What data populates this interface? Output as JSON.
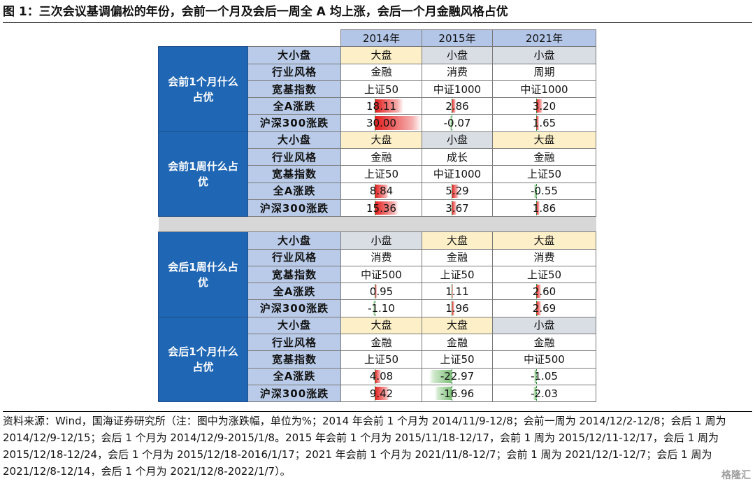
{
  "title": "图 1：三次会议基调偏松的年份，会前一个月及会后一周全 A 均上涨，会后一个月金融风格占优",
  "years": [
    "2014年",
    "2015年",
    "2021年"
  ],
  "groups": [
    {
      "label": "会前1个月什么占优",
      "rows": [
        {
          "label": "大小盘",
          "kind": "size",
          "cells": [
            {
              "text": "大盘",
              "style": "big"
            },
            {
              "text": "小盘",
              "style": "small"
            },
            {
              "text": "小盘",
              "style": "small"
            }
          ]
        },
        {
          "label": "行业风格",
          "kind": "text",
          "cells": [
            {
              "text": "金融"
            },
            {
              "text": "消费"
            },
            {
              "text": "周期"
            }
          ]
        },
        {
          "label": "宽基指数",
          "kind": "text",
          "cells": [
            {
              "text": "上证50"
            },
            {
              "text": "中证1000"
            },
            {
              "text": "中证1000"
            }
          ]
        },
        {
          "label": "全A涨跌",
          "kind": "num",
          "cells": [
            {
              "text": "18.11",
              "value": 18.11
            },
            {
              "text": "2.86",
              "value": 2.86
            },
            {
              "text": "3.20",
              "value": 3.2
            }
          ]
        },
        {
          "label": "沪深300涨跌",
          "kind": "num",
          "cells": [
            {
              "text": "30.00",
              "value": 30.0
            },
            {
              "text": "-0.07",
              "value": -0.07
            },
            {
              "text": "1.65",
              "value": 1.65
            }
          ]
        }
      ]
    },
    {
      "label": "会前1周什么占优",
      "rows": [
        {
          "label": "大小盘",
          "kind": "size",
          "cells": [
            {
              "text": "大盘",
              "style": "big"
            },
            {
              "text": "小盘",
              "style": "small"
            },
            {
              "text": "大盘",
              "style": "big"
            }
          ]
        },
        {
          "label": "行业风格",
          "kind": "text",
          "cells": [
            {
              "text": "金融"
            },
            {
              "text": "成长"
            },
            {
              "text": "金融"
            }
          ]
        },
        {
          "label": "宽基指数",
          "kind": "text",
          "cells": [
            {
              "text": "上证50"
            },
            {
              "text": "中证1000"
            },
            {
              "text": "上证50"
            }
          ]
        },
        {
          "label": "全A涨跌",
          "kind": "num",
          "cells": [
            {
              "text": "8.84",
              "value": 8.84
            },
            {
              "text": "5.29",
              "value": 5.29
            },
            {
              "text": "-0.55",
              "value": -0.55
            }
          ]
        },
        {
          "label": "沪深300涨跌",
          "kind": "num",
          "cells": [
            {
              "text": "15.36",
              "value": 15.36
            },
            {
              "text": "3.67",
              "value": 3.67
            },
            {
              "text": "1.86",
              "value": 1.86
            }
          ]
        }
      ]
    },
    {
      "label": "会后1周什么占优",
      "rows": [
        {
          "label": "大小盘",
          "kind": "size",
          "cells": [
            {
              "text": "小盘",
              "style": "small"
            },
            {
              "text": "大盘",
              "style": "big"
            },
            {
              "text": "大盘",
              "style": "big"
            }
          ]
        },
        {
          "label": "行业风格",
          "kind": "text",
          "cells": [
            {
              "text": "消费"
            },
            {
              "text": "金融"
            },
            {
              "text": "消费"
            }
          ]
        },
        {
          "label": "宽基指数",
          "kind": "text",
          "cells": [
            {
              "text": "中证500"
            },
            {
              "text": "上证50"
            },
            {
              "text": "上证50"
            }
          ]
        },
        {
          "label": "全A涨跌",
          "kind": "num",
          "cells": [
            {
              "text": "0.95",
              "value": 0.95
            },
            {
              "text": "1.11",
              "value": 1.11
            },
            {
              "text": "2.60",
              "value": 2.6
            }
          ]
        },
        {
          "label": "沪深300涨跌",
          "kind": "num",
          "cells": [
            {
              "text": "-1.10",
              "value": -1.1
            },
            {
              "text": "1.96",
              "value": 1.96
            },
            {
              "text": "2.69",
              "value": 2.69
            }
          ]
        }
      ]
    },
    {
      "label": "会后1个月什么占优",
      "rows": [
        {
          "label": "大小盘",
          "kind": "size",
          "cells": [
            {
              "text": "大盘",
              "style": "big"
            },
            {
              "text": "大盘",
              "style": "big"
            },
            {
              "text": "小盘",
              "style": "small"
            }
          ]
        },
        {
          "label": "行业风格",
          "kind": "text",
          "cells": [
            {
              "text": "金融"
            },
            {
              "text": "金融"
            },
            {
              "text": "金融"
            }
          ]
        },
        {
          "label": "宽基指数",
          "kind": "text",
          "cells": [
            {
              "text": "上证50"
            },
            {
              "text": "上证50"
            },
            {
              "text": "中证500"
            }
          ]
        },
        {
          "label": "全A涨跌",
          "kind": "num",
          "cells": [
            {
              "text": "4.08",
              "value": 4.08
            },
            {
              "text": "-22.97",
              "value": -22.97
            },
            {
              "text": "-1.05",
              "value": -1.05
            }
          ]
        },
        {
          "label": "沪深300涨跌",
          "kind": "num",
          "cells": [
            {
              "text": "9.42",
              "value": 9.42
            },
            {
              "text": "-16.96",
              "value": -16.96
            },
            {
              "text": "-2.03",
              "value": -2.03
            }
          ]
        }
      ]
    }
  ],
  "colors": {
    "positive": "#e31b1b",
    "negative": "#7fc07a",
    "big": "#fdf0c8",
    "small": "#d9dde4",
    "group": "#1f66b4",
    "label": "#b9cbe8",
    "year": "#b3c6e7"
  },
  "source": "资料来源：Wind，国海证券研究所（注：图中为涨跌幅，单位为%；2014 年会前 1 个月为 2014/11/9-12/8；会前一周为 2014/12/2-12/8；会后 1 周为 2014/12/9-12/15；会后 1 个月为 2014/12/9-2015/1/8。2015 年会前 1 个月为 2015/11/18-12/17，会前 1 周为 2015/12/11-12/17，会后 1 周为 2015/12/18-12/24，会后 1 个月为 2015/12/18-2016/1/17；2021 年会前 1 个月为 2021/11/8-12/7；会前 1 周为 2021/12/1-12/7；会后 1 周为 2021/12/8-12/14，会后 1 个月为 2021/12/8-2022/1/7）。",
  "watermark": "格隆汇"
}
